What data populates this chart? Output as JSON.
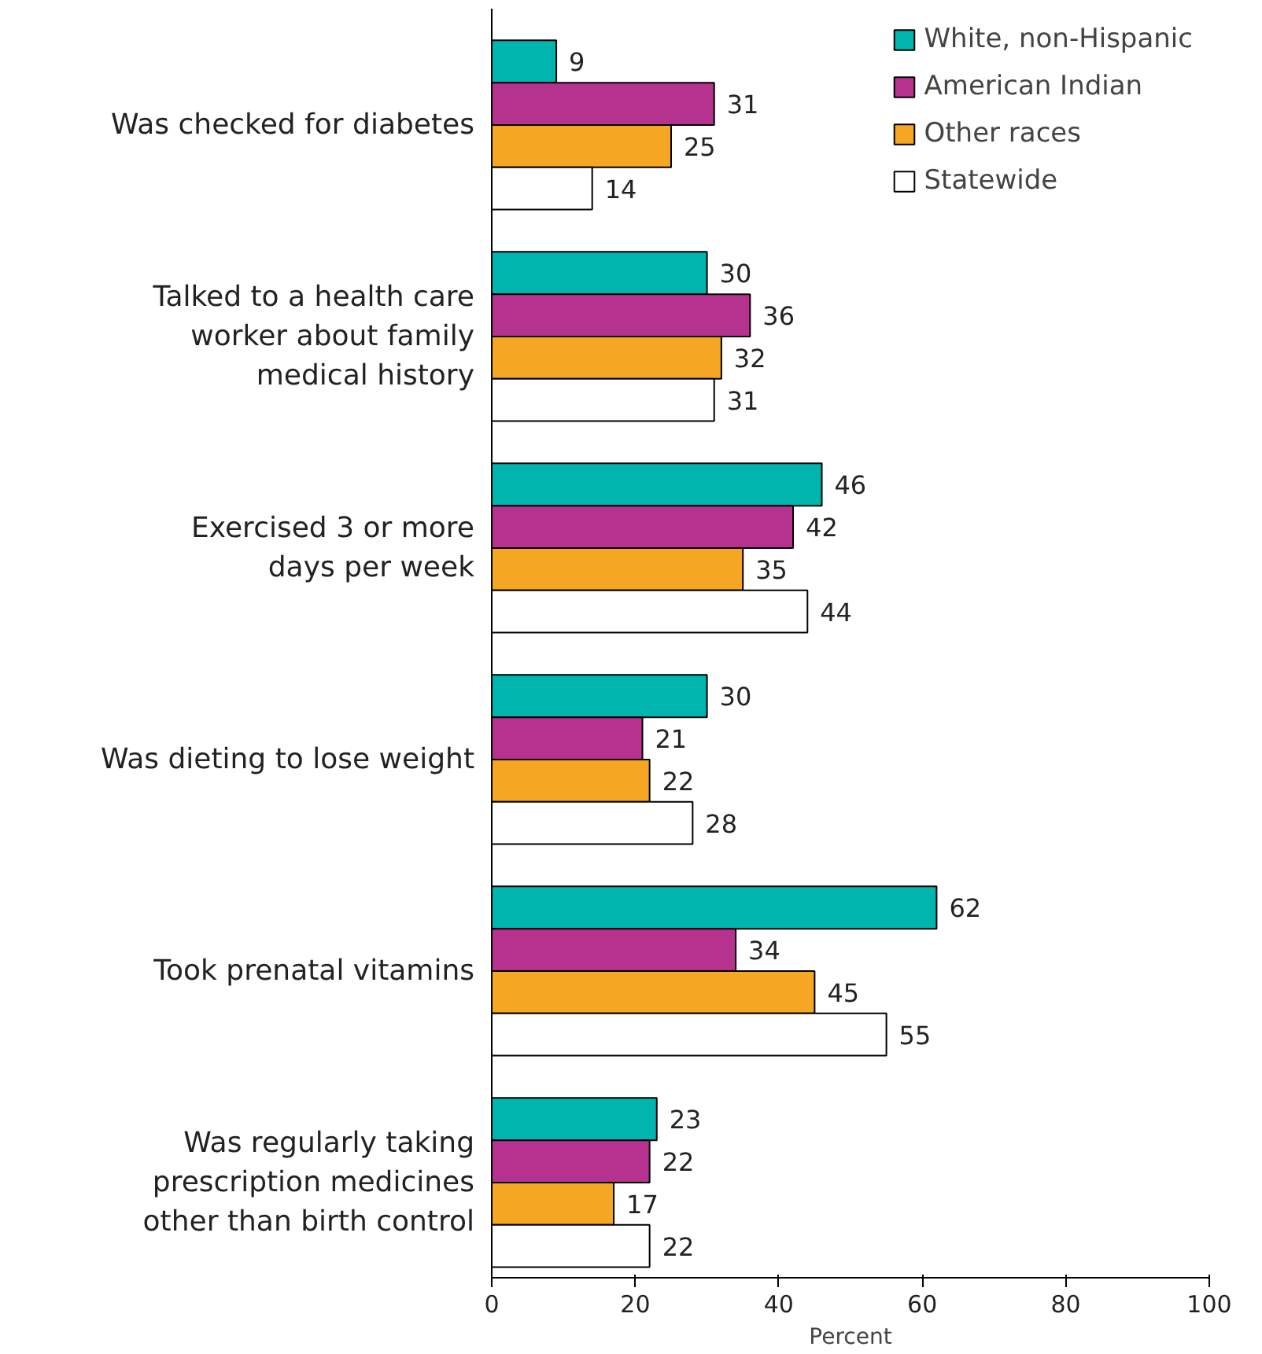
{
  "chart_data": {
    "type": "bar",
    "orientation": "horizontal",
    "xlabel": "Percent",
    "categories": [
      "Was checked for diabetes",
      "Talked to a health care\nworker about family\nmedical history",
      "Exercised 3 or more\ndays per week",
      "Was dieting to lose weight",
      "Took prenatal vitamins",
      "Was regularly taking\nprescription medicines\nother than birth control"
    ],
    "series": [
      {
        "name": "White, non-Hispanic",
        "color": "#00b5ad",
        "values": [
          9,
          30,
          46,
          30,
          62,
          23
        ]
      },
      {
        "name": "American Indian",
        "color": "#b5338f",
        "values": [
          31,
          36,
          42,
          21,
          34,
          22
        ]
      },
      {
        "name": "Other races",
        "color": "#f5a623",
        "values": [
          25,
          32,
          35,
          22,
          45,
          17
        ]
      },
      {
        "name": "Statewide",
        "color": "#ffffff",
        "values": [
          14,
          31,
          44,
          28,
          55,
          22
        ]
      }
    ],
    "xlim": [
      0,
      100
    ],
    "xticks": [
      0,
      20,
      40,
      60,
      80,
      100
    ],
    "data_labels": true,
    "grid": false,
    "legend": "top right"
  }
}
